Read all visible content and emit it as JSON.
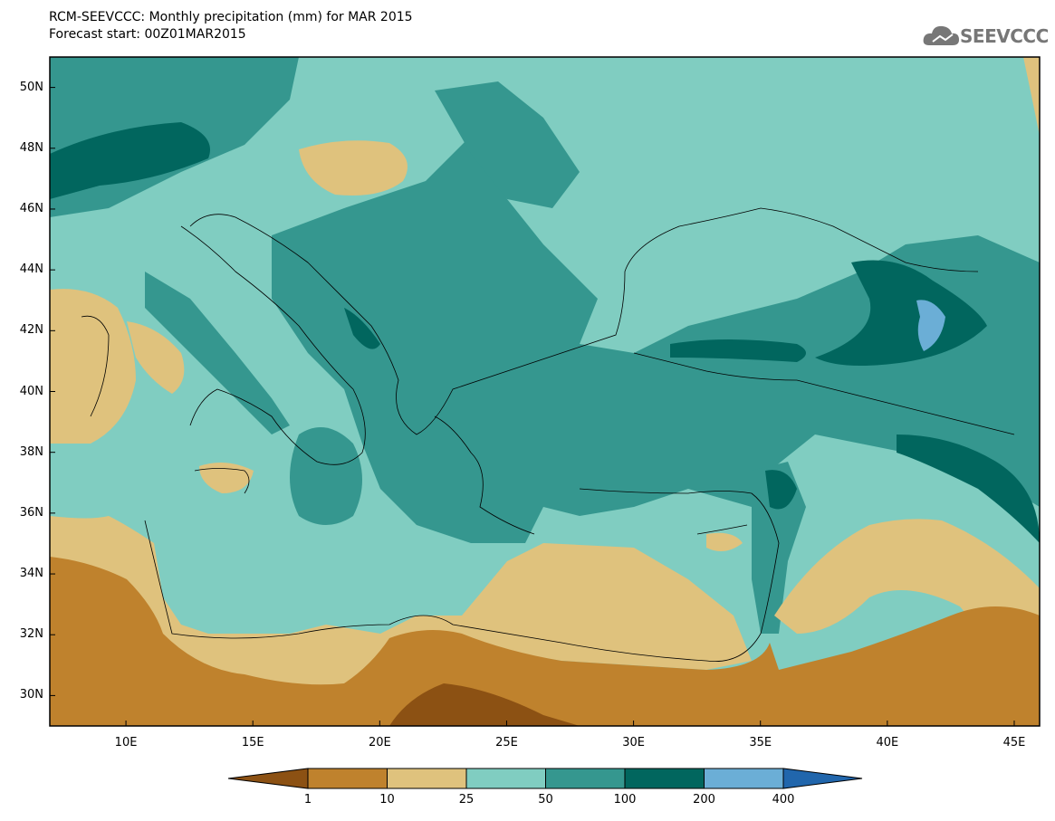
{
  "title_line1": "RCM-SEEVCCC: Monthly precipitation (mm) for MAR 2015",
  "title_line2": "Forecast start: 00Z01MAR2015",
  "logo": {
    "text": "SEEVCCC",
    "icon": "cloud-icon"
  },
  "map": {
    "region": "Mediterranean / Balkans / Black Sea",
    "lon_range": [
      7,
      46
    ],
    "lat_range": [
      29,
      51
    ],
    "lat_ticks": [
      "50N",
      "48N",
      "46N",
      "44N",
      "42N",
      "40N",
      "38N",
      "36N",
      "34N",
      "32N",
      "30N"
    ],
    "lon_ticks": [
      "10E",
      "15E",
      "20E",
      "25E",
      "30E",
      "35E",
      "40E",
      "45E"
    ]
  },
  "colorbar": {
    "units": "mm",
    "thresholds": [
      "1",
      "10",
      "25",
      "50",
      "100",
      "200",
      "400"
    ],
    "colors": {
      "lt1": "#8c5113",
      "c1_10": "#bf822d",
      "c10_25": "#dfc27d",
      "c25_50": "#80cdc1",
      "c50_100": "#35978f",
      "c100_200": "#01665e",
      "c200_400": "#6baed6",
      "gt400": "#2166ac"
    }
  }
}
